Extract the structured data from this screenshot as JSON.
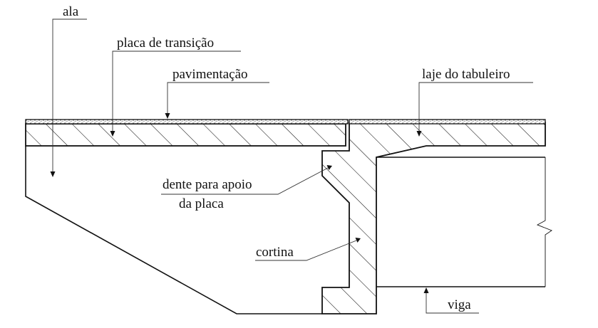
{
  "labels": {
    "ala": "ala",
    "placa_de_transicao": "placa de transição",
    "pavimentacao": "pavimentação",
    "laje_do_tabuleiro": "laje do tabuleiro",
    "dente_line1": "dente para  apoio",
    "dente_line2": "da placa",
    "cortina": "cortina",
    "viga": "viga"
  }
}
